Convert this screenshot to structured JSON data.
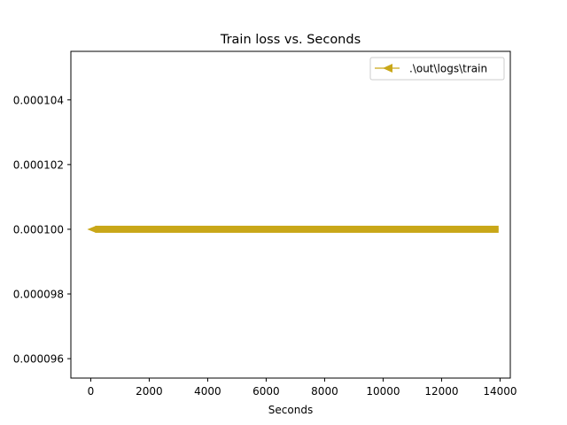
{
  "chart_data": {
    "type": "line",
    "title": "Train loss  vs. Seconds",
    "xlabel": "Seconds",
    "ylabel": "",
    "xlim": [
      -680,
      14350
    ],
    "ylim": [
      9.54e-05,
      0.0001055
    ],
    "xticks": [
      0,
      2000,
      4000,
      6000,
      8000,
      10000,
      12000,
      14000
    ],
    "xtick_labels": [
      "0",
      "2000",
      "4000",
      "6000",
      "8000",
      "10000",
      "12000",
      "14000"
    ],
    "yticks": [
      9.6e-05,
      9.8e-05,
      0.0001,
      0.000102,
      0.000104
    ],
    "ytick_labels": [
      "0.000096",
      "0.000098",
      "0.000100",
      "0.000102",
      "0.000104"
    ],
    "grid": false,
    "legend_position": "top-right",
    "series": [
      {
        "name": ".\\out\\logs\\train",
        "color": "#c9a718",
        "marker": "triangle-left",
        "x_range": [
          0,
          13950
        ],
        "y": 0.0001
      }
    ]
  }
}
